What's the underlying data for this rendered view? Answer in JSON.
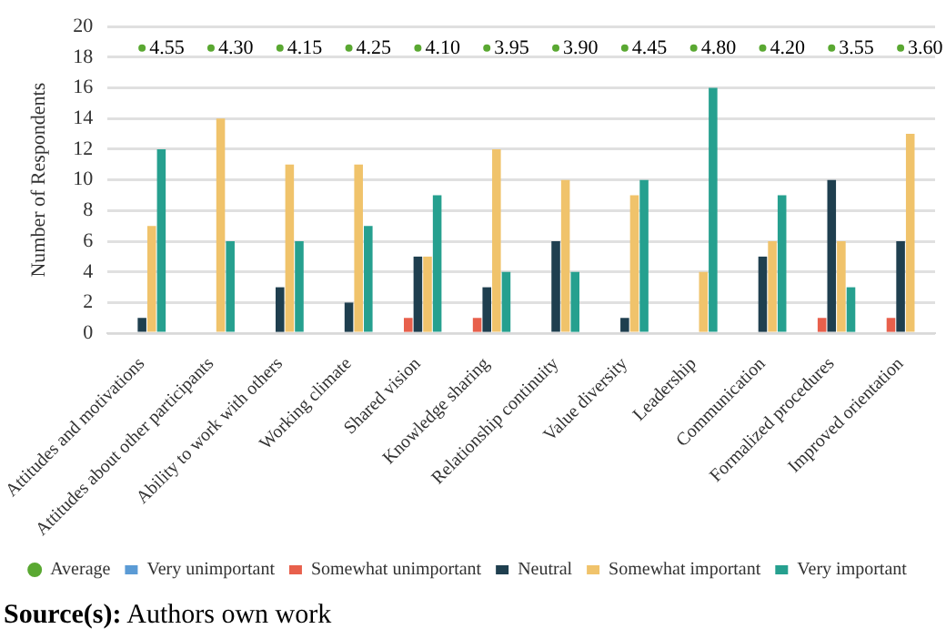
{
  "chart_data": {
    "type": "bar",
    "ylabel": "Number of Respondents",
    "categories": [
      "Attitudes and motivations",
      "Attitudes about other participants",
      "Ability to work with others",
      "Working climate",
      "Shared vision",
      "Knowledge sharing",
      "Relationship continuity",
      "Value diversity",
      "Leadership",
      "Communication",
      "Formalized procedures",
      "Improved orientation"
    ],
    "series": [
      {
        "name": "Very unimportant",
        "color": "#5b9bd5",
        "values": [
          0,
          0,
          0,
          0,
          0,
          0,
          0,
          0,
          0,
          0,
          0,
          0
        ]
      },
      {
        "name": "Somewhat unimportant",
        "color": "#e8604c",
        "values": [
          0,
          0,
          0,
          0,
          1,
          1,
          0,
          0,
          0,
          0,
          1,
          1
        ]
      },
      {
        "name": "Neutral",
        "color": "#1f3f4f",
        "values": [
          1,
          0,
          3,
          2,
          5,
          3,
          6,
          1,
          0,
          5,
          10,
          6
        ]
      },
      {
        "name": "Somewhat important",
        "color": "#f0c36b",
        "values": [
          7,
          14,
          11,
          11,
          5,
          12,
          10,
          9,
          4,
          6,
          6,
          13
        ]
      },
      {
        "name": "Very important",
        "color": "#26a08f",
        "values": [
          12,
          6,
          6,
          7,
          9,
          4,
          4,
          10,
          16,
          9,
          3,
          0
        ]
      },
      {
        "name": "Average",
        "type": "scatter",
        "color": "#5aa832",
        "values": [
          18.6,
          18.6,
          18.6,
          18.6,
          18.6,
          18.6,
          18.6,
          18.6,
          18.6,
          18.6,
          18.6,
          18.6
        ]
      }
    ],
    "ylim": [
      0,
      20
    ],
    "yticks": [
      0,
      2,
      4,
      6,
      8,
      10,
      12,
      14,
      16,
      18,
      20
    ],
    "grid": "y",
    "legend": "bottom",
    "annotations": [
      {
        "text": "4.55",
        "x": "Attitudes and motivations",
        "y": 18.6
      },
      {
        "text": "4.30",
        "x": "Attitudes about other participants",
        "y": 18.6
      },
      {
        "text": "4.15",
        "x": "Ability to work with others",
        "y": 18.6
      },
      {
        "text": "4.25",
        "x": "Working climate",
        "y": 18.6
      },
      {
        "text": "4.10",
        "x": "Shared vision",
        "y": 18.6
      },
      {
        "text": "3.95",
        "x": "Knowledge sharing",
        "y": 18.6
      },
      {
        "text": "3.90",
        "x": "Relationship continuity",
        "y": 18.6
      },
      {
        "text": "4.45",
        "x": "Value diversity",
        "y": 18.6
      },
      {
        "text": "4.80",
        "x": "Leadership",
        "y": 18.6
      },
      {
        "text": "4.20",
        "x": "Communication",
        "y": 18.6
      },
      {
        "text": "3.55",
        "x": "Formalized procedures",
        "y": 18.6
      },
      {
        "text": "3.60",
        "x": "Improved orientation",
        "y": 18.6
      },
      "Source(s): Authors own work"
    ]
  }
}
